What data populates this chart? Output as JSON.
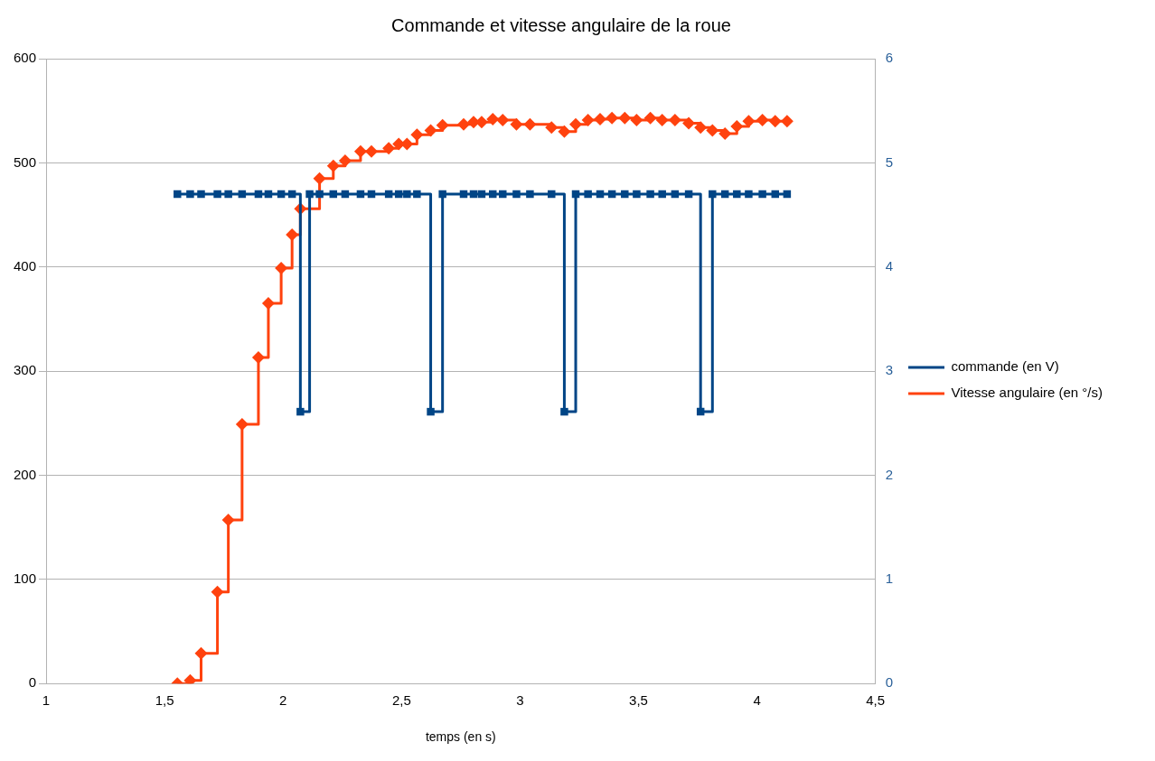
{
  "chart_data": {
    "type": "step",
    "title": "Commande et vitesse angulaire de la roue",
    "xlabel": "temps (en s)",
    "xlim": [
      1,
      4.5
    ],
    "xticks": [
      1,
      {
        "value": 1.5,
        "label": "1,5"
      },
      2,
      {
        "value": 2.5,
        "label": "2,5"
      },
      3,
      {
        "value": 3.5,
        "label": "3,5"
      },
      4,
      {
        "value": 4.5,
        "label": "4,5"
      }
    ],
    "ylim": [
      0,
      600
    ],
    "yticks": [
      0,
      100,
      200,
      300,
      400,
      500,
      600
    ],
    "y2lim": [
      0,
      6
    ],
    "y2ticks": [
      0,
      1,
      2,
      3,
      4,
      5,
      6
    ],
    "grid": "y",
    "legend": "right",
    "series": [
      {
        "name": "commande (en V)",
        "color": "#004586",
        "axis": "y2",
        "marker": "square",
        "x": [
          1.554,
          1.608,
          1.654,
          1.723,
          1.769,
          1.827,
          1.896,
          1.938,
          1.992,
          2.038,
          2.073,
          2.112,
          2.154,
          2.212,
          2.262,
          2.327,
          2.373,
          2.446,
          2.488,
          2.523,
          2.565,
          2.623,
          2.673,
          2.762,
          2.804,
          2.838,
          2.885,
          2.927,
          2.985,
          3.042,
          3.133,
          3.187,
          3.235,
          3.287,
          3.338,
          3.388,
          3.442,
          3.492,
          3.55,
          3.6,
          3.654,
          3.712,
          3.762,
          3.812,
          3.865,
          3.915,
          3.965,
          4.023,
          4.077,
          4.127
        ],
        "values": [
          4.7,
          4.7,
          4.7,
          4.7,
          4.7,
          4.7,
          4.7,
          4.7,
          4.7,
          4.7,
          2.61,
          4.7,
          4.7,
          4.7,
          4.7,
          4.7,
          4.7,
          4.7,
          4.7,
          4.7,
          4.7,
          2.61,
          4.7,
          4.7,
          4.7,
          4.7,
          4.7,
          4.7,
          4.7,
          4.7,
          4.7,
          2.61,
          4.7,
          4.7,
          4.7,
          4.7,
          4.7,
          4.7,
          4.7,
          4.7,
          4.7,
          4.7,
          2.61,
          4.7,
          4.7,
          4.7,
          4.7,
          4.7,
          4.7,
          4.7
        ]
      },
      {
        "name": "Vitesse angulaire (en °/s)",
        "color": "#ff420e",
        "marker": "diamond",
        "x": [
          1.554,
          1.608,
          1.654,
          1.723,
          1.769,
          1.827,
          1.896,
          1.938,
          1.992,
          2.038,
          2.073,
          2.154,
          2.212,
          2.262,
          2.327,
          2.373,
          2.446,
          2.488,
          2.523,
          2.565,
          2.623,
          2.673,
          2.762,
          2.804,
          2.838,
          2.885,
          2.927,
          2.985,
          3.042,
          3.133,
          3.187,
          3.235,
          3.287,
          3.338,
          3.388,
          3.442,
          3.492,
          3.55,
          3.6,
          3.654,
          3.712,
          3.762,
          3.812,
          3.865,
          3.915,
          3.965,
          4.023,
          4.077,
          4.127
        ],
        "values": [
          0,
          3,
          29,
          88,
          157,
          249,
          313,
          365,
          399,
          431,
          456,
          485,
          497,
          502,
          511,
          511,
          514,
          518,
          518,
          527,
          531,
          536,
          537,
          539,
          539,
          542,
          541,
          537,
          537,
          534,
          530,
          537,
          541,
          542,
          543,
          543,
          541,
          543,
          541,
          541,
          538,
          534,
          531,
          528,
          535,
          540,
          541,
          540,
          540
        ]
      }
    ]
  }
}
